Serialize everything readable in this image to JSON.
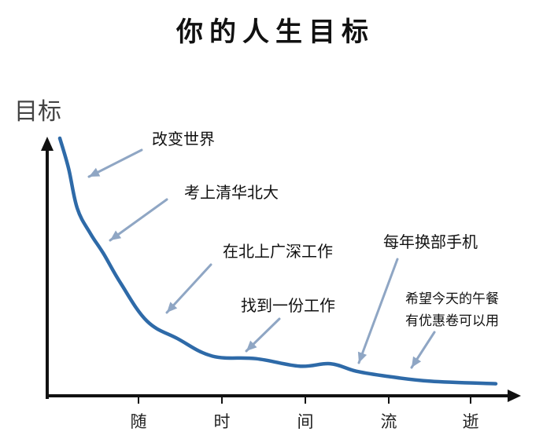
{
  "chart_data": {
    "type": "line",
    "title": "你的人生目标",
    "ylabel": "目标",
    "xlabel": "",
    "x_ticks": [
      "随",
      "时",
      "间",
      "流",
      "逝"
    ],
    "series": [
      {
        "x": [
          0,
          0.02,
          0.04,
          0.07,
          0.1,
          0.14,
          0.2,
          0.27,
          0.35,
          0.45,
          0.55,
          0.62,
          0.68,
          0.75,
          0.85,
          1.0
        ],
        "y": [
          1.0,
          0.88,
          0.72,
          0.62,
          0.54,
          0.42,
          0.27,
          0.2,
          0.13,
          0.12,
          0.09,
          0.1,
          0.07,
          0.05,
          0.03,
          0.02
        ]
      }
    ],
    "annotations": [
      {
        "text": "改变世界",
        "x": 0.02,
        "y": 0.88
      },
      {
        "text": "考上清华北大",
        "x": 0.1,
        "y": 0.54
      },
      {
        "text": "在北上广深工作",
        "x": 0.2,
        "y": 0.27
      },
      {
        "text": "找到一份工作",
        "x": 0.35,
        "y": 0.13
      },
      {
        "text": "每年换部手机",
        "x": 0.62,
        "y": 0.1
      },
      {
        "text": "希望今天的午餐",
        "x": 0.75,
        "y": 0.05
      },
      {
        "text": "有优惠卷可以用",
        "x": 0.75,
        "y": 0.05
      }
    ],
    "grid": false,
    "colors": {
      "line": "#2e6aa8",
      "arrow": "#8fa6c4",
      "axis": "#111111"
    }
  }
}
